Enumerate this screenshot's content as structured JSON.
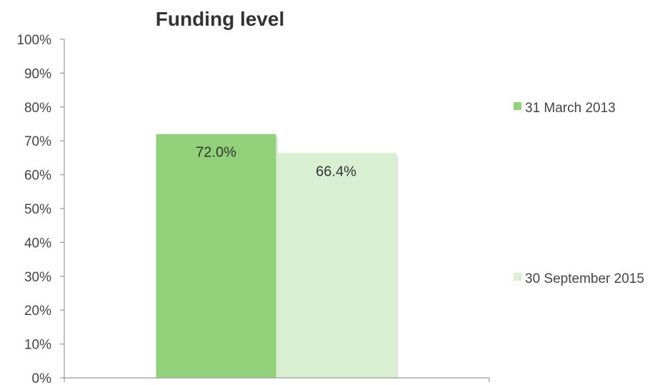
{
  "chart_data": {
    "type": "bar",
    "title": "Funding level",
    "categories": [
      ""
    ],
    "series": [
      {
        "name": "31 March 2013",
        "values": [
          72.0
        ],
        "color": "#92d17a",
        "data_label": "72.0%"
      },
      {
        "name": "30 September 2015",
        "values": [
          66.4
        ],
        "color": "#d9efd2",
        "data_label": "66.4%"
      }
    ],
    "xlabel": "",
    "ylabel": "",
    "ylim": [
      0,
      100
    ],
    "yticks": [
      0,
      10,
      20,
      30,
      40,
      50,
      60,
      70,
      80,
      90,
      100
    ],
    "ytick_labels": [
      "0%",
      "10%",
      "20%",
      "30%",
      "40%",
      "50%",
      "60%",
      "70%",
      "80%",
      "90%",
      "100%"
    ],
    "grid": false,
    "legend_position": "right"
  }
}
